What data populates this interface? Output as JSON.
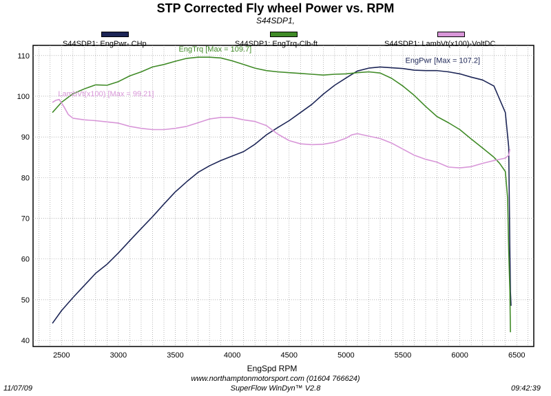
{
  "header": {
    "title": "STP Corrected Fly wheel Power vs. RPM",
    "subtitle": "S44SDP1,"
  },
  "legend": [
    {
      "label": "S44SDP1: EngPwr- CHp",
      "color": "#1c2556"
    },
    {
      "label": "S44SDP1: EngTrq-Clb-ft",
      "color": "#3f8a26"
    },
    {
      "label": "S44SDP1: LambVt(x100)-VoltDC",
      "color": "#d896d8"
    }
  ],
  "footer": {
    "date": "11/07/09",
    "time": "09:42:39",
    "website": "www.northamptonmotorsport.com (01604 766624)",
    "software": "SuperFlow WinDyn™ V2.8"
  },
  "chart_data": {
    "type": "line",
    "xlabel": "EngSpd  RPM",
    "ylabel": "",
    "xlim": [
      2250,
      6650
    ],
    "ylim": [
      38.5,
      112.5
    ],
    "xticks": [
      2500,
      3000,
      3500,
      4000,
      4500,
      5000,
      5500,
      6000,
      6500
    ],
    "yticks": [
      40,
      50,
      60,
      70,
      80,
      90,
      100,
      110
    ],
    "grid": true,
    "legend_position": "top",
    "series": [
      {
        "name": "S44SDP1: EngPwr- CHp",
        "color": "#1c2556",
        "annotation": "EngPwr [Max = 107.2]",
        "x": [
          2420,
          2500,
          2600,
          2700,
          2800,
          2900,
          3000,
          3100,
          3200,
          3300,
          3400,
          3500,
          3600,
          3700,
          3800,
          3900,
          4000,
          4100,
          4200,
          4300,
          4400,
          4500,
          4600,
          4700,
          4800,
          4900,
          5000,
          5100,
          5200,
          5300,
          5400,
          5500,
          5600,
          5700,
          5800,
          5900,
          6000,
          6100,
          6200,
          6300,
          6400,
          6430,
          6440,
          6445,
          6450
        ],
        "y": [
          44.2,
          47.3,
          50.5,
          53.5,
          56.5,
          58.7,
          61.5,
          64.5,
          67.5,
          70.4,
          73.5,
          76.5,
          79.0,
          81.3,
          82.9,
          84.2,
          85.3,
          86.4,
          88.2,
          90.5,
          92.3,
          94.0,
          96.0,
          98.0,
          100.5,
          102.7,
          104.5,
          106.2,
          106.9,
          107.2,
          107.0,
          106.8,
          106.4,
          106.3,
          106.3,
          106.0,
          105.5,
          104.7,
          104.0,
          102.5,
          96.0,
          87.5,
          62.0,
          52.0,
          48.5
        ]
      },
      {
        "name": "S44SDP1: EngTrq-Clb-ft",
        "color": "#3f8a26",
        "annotation": "EngTrq [Max = 109.7]",
        "x": [
          2420,
          2500,
          2600,
          2700,
          2800,
          2900,
          3000,
          3100,
          3200,
          3300,
          3400,
          3500,
          3600,
          3700,
          3800,
          3900,
          4000,
          4100,
          4200,
          4300,
          4400,
          4500,
          4600,
          4700,
          4800,
          4900,
          5000,
          5100,
          5200,
          5300,
          5400,
          5500,
          5600,
          5700,
          5800,
          5900,
          6000,
          6100,
          6200,
          6300,
          6350,
          6400,
          6420,
          6430,
          6440,
          6445
        ],
        "y": [
          96.0,
          98.5,
          100.6,
          101.8,
          102.8,
          102.7,
          103.6,
          105.0,
          106.0,
          107.2,
          107.8,
          108.6,
          109.3,
          109.6,
          109.6,
          109.4,
          108.7,
          107.8,
          106.9,
          106.3,
          106.0,
          105.8,
          105.6,
          105.4,
          105.2,
          105.4,
          105.5,
          105.8,
          106.0,
          105.7,
          104.4,
          102.5,
          100.2,
          97.5,
          95.0,
          93.5,
          91.8,
          89.5,
          87.3,
          85.0,
          83.5,
          81.5,
          75.0,
          62.0,
          52.0,
          42.0
        ]
      },
      {
        "name": "S44SDP1: LambVt(x100)-VoltDC",
        "color": "#d896d8",
        "annotation": "LambVt(x100) [Max = 99.21]",
        "x": [
          2420,
          2450,
          2480,
          2520,
          2560,
          2600,
          2700,
          2800,
          2900,
          3000,
          3100,
          3200,
          3300,
          3400,
          3500,
          3600,
          3700,
          3800,
          3900,
          4000,
          4100,
          4200,
          4300,
          4400,
          4500,
          4600,
          4700,
          4800,
          4900,
          5000,
          5050,
          5100,
          5200,
          5300,
          5400,
          5500,
          5600,
          5700,
          5800,
          5900,
          6000,
          6100,
          6200,
          6300,
          6400,
          6430,
          6440
        ],
        "y": [
          98.5,
          99.0,
          99.2,
          97.5,
          95.5,
          94.6,
          94.2,
          94.0,
          93.7,
          93.4,
          92.6,
          92.1,
          91.8,
          91.8,
          92.1,
          92.6,
          93.5,
          94.4,
          94.8,
          94.8,
          94.2,
          93.8,
          92.8,
          90.7,
          89.1,
          88.3,
          88.1,
          88.2,
          88.7,
          89.7,
          90.5,
          90.8,
          90.2,
          89.6,
          88.5,
          87.0,
          85.5,
          84.5,
          83.8,
          82.6,
          82.4,
          82.7,
          83.5,
          84.2,
          84.8,
          85.5,
          87.0
        ]
      }
    ]
  }
}
